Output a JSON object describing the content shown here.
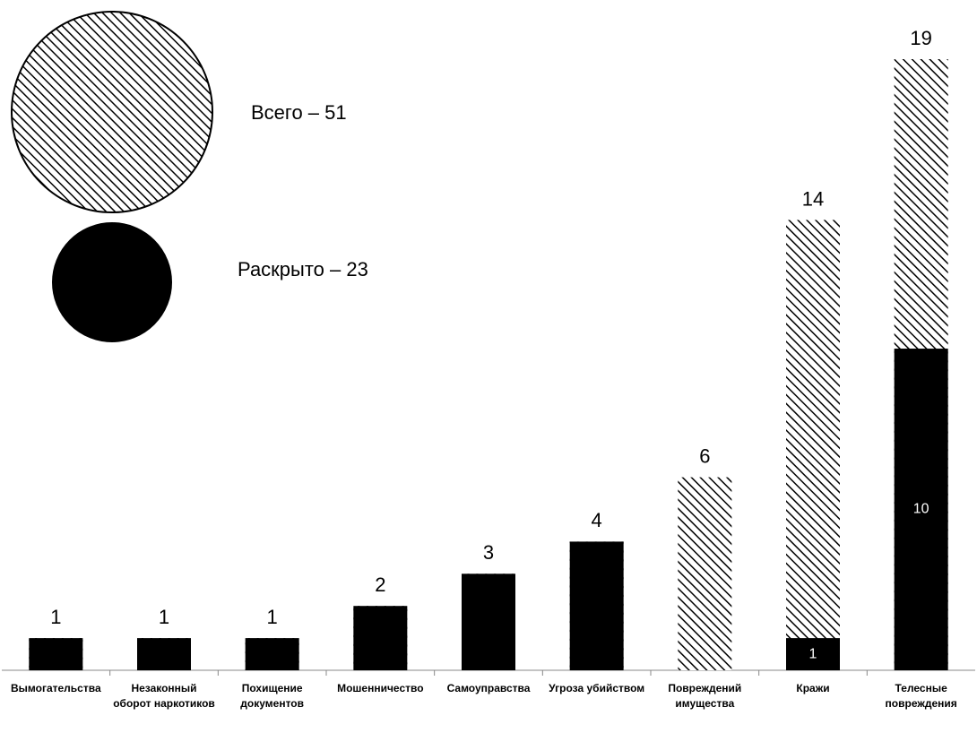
{
  "chart_data": {
    "type": "overlay-bar",
    "categories": [
      "Вымогательства",
      "Незаконный оборот наркотиков",
      "Похищение документов",
      "Мошенничество",
      "Самоуправства",
      "Угроза убийством",
      "Повреждений имущества",
      "Кражи",
      "Телесные повреждения"
    ],
    "series": [
      {
        "name": "Всего – 51",
        "color": "#000000",
        "fill": "hatch",
        "values": [
          1,
          1,
          1,
          2,
          3,
          4,
          6,
          14,
          19
        ]
      },
      {
        "name": "Раскрыто – 23",
        "color": "#000000",
        "fill": "solid",
        "values": [
          1,
          1,
          1,
          2,
          3,
          4,
          0,
          1,
          10
        ]
      }
    ]
  }
}
